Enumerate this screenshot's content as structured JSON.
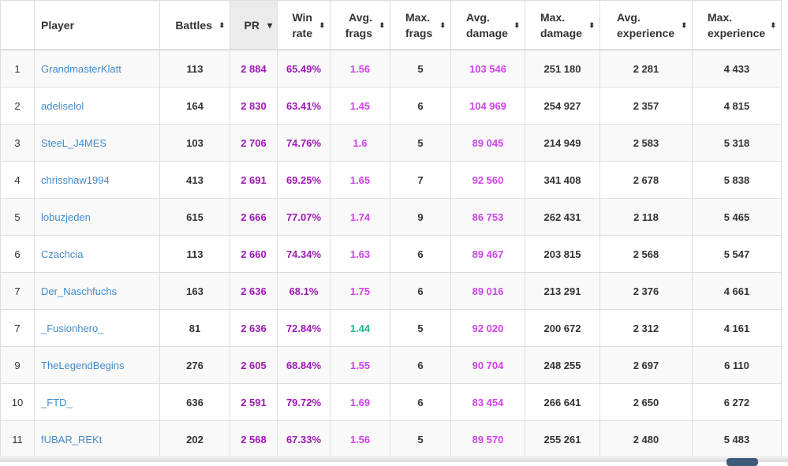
{
  "headers": {
    "player": "Player",
    "battles": "Battles",
    "pr": "PR",
    "win_l1": "Win",
    "win_l2": "rate",
    "af_l1": "Avg.",
    "af_l2": "frags",
    "mf_l1": "Max.",
    "mf_l2": "frags",
    "ad_l1": "Avg.",
    "ad_l2": "damage",
    "md_l1": "Max.",
    "md_l2": "damage",
    "ae_l1": "Avg.",
    "ae_l2": "experience",
    "me_l1": "Max.",
    "me_l2": "experience"
  },
  "sort_icons": {
    "sortable": "⬍",
    "sorted_desc": "▾"
  },
  "colors": {
    "pr": "#9b1ab3",
    "high": "#d042ec",
    "good": "#17b890",
    "link": "#428bca"
  },
  "rows": [
    {
      "rank": "1",
      "player": "GrandmasterKlatt",
      "battles": "113",
      "pr": "2 884",
      "win": "65.49%",
      "af": "1.56",
      "mf": "5",
      "ad": "103 546",
      "md": "251 180",
      "ae": "2 281",
      "me": "4 433"
    },
    {
      "rank": "2",
      "player": "adeliselol",
      "battles": "164",
      "pr": "2 830",
      "win": "63.41%",
      "af": "1.45",
      "mf": "6",
      "ad": "104 969",
      "md": "254 927",
      "ae": "2 357",
      "me": "4 815"
    },
    {
      "rank": "3",
      "player": "SteeL_J4MES",
      "battles": "103",
      "pr": "2 706",
      "win": "74.76%",
      "af": "1.6",
      "mf": "5",
      "ad": "89 045",
      "md": "214 949",
      "ae": "2 583",
      "me": "5 318"
    },
    {
      "rank": "4",
      "player": "chrisshaw1994",
      "battles": "413",
      "pr": "2 691",
      "win": "69.25%",
      "af": "1.65",
      "mf": "7",
      "ad": "92 560",
      "md": "341 408",
      "ae": "2 678",
      "me": "5 838"
    },
    {
      "rank": "5",
      "player": "lobuzjeden",
      "battles": "615",
      "pr": "2 666",
      "win": "77.07%",
      "af": "1.74",
      "mf": "9",
      "ad": "86 753",
      "md": "262 431",
      "ae": "2 118",
      "me": "5 465"
    },
    {
      "rank": "6",
      "player": "Czachcia",
      "battles": "113",
      "pr": "2 660",
      "win": "74.34%",
      "af": "1.63",
      "mf": "6",
      "ad": "89 467",
      "md": "203 815",
      "ae": "2 568",
      "me": "5 547"
    },
    {
      "rank": "7",
      "player": "Der_Naschfuchs",
      "battles": "163",
      "pr": "2 636",
      "win": "68.1%",
      "af": "1.75",
      "mf": "6",
      "ad": "89 016",
      "md": "213 291",
      "ae": "2 376",
      "me": "4 661"
    },
    {
      "rank": "7",
      "player": "_Fusionhero_",
      "battles": "81",
      "pr": "2 636",
      "win": "72.84%",
      "af": "1.44",
      "af_color": "good",
      "mf": "5",
      "ad": "92 020",
      "md": "200 672",
      "ae": "2 312",
      "me": "4 161"
    },
    {
      "rank": "9",
      "player": "TheLegendBegins",
      "battles": "276",
      "pr": "2 605",
      "win": "68.84%",
      "af": "1.55",
      "mf": "6",
      "ad": "90 704",
      "md": "248 255",
      "ae": "2 697",
      "me": "6 110"
    },
    {
      "rank": "10",
      "player": "_FTD_",
      "battles": "636",
      "pr": "2 591",
      "win": "79.72%",
      "af": "1.69",
      "mf": "6",
      "ad": "83 454",
      "md": "266 641",
      "ae": "2 650",
      "me": "6 272"
    },
    {
      "rank": "11",
      "player": "fUBAR_REKt",
      "battles": "202",
      "pr": "2 568",
      "win": "67.33%",
      "af": "1.56",
      "mf": "5",
      "ad": "89 570",
      "md": "255 261",
      "ae": "2 480",
      "me": "5 483"
    }
  ]
}
